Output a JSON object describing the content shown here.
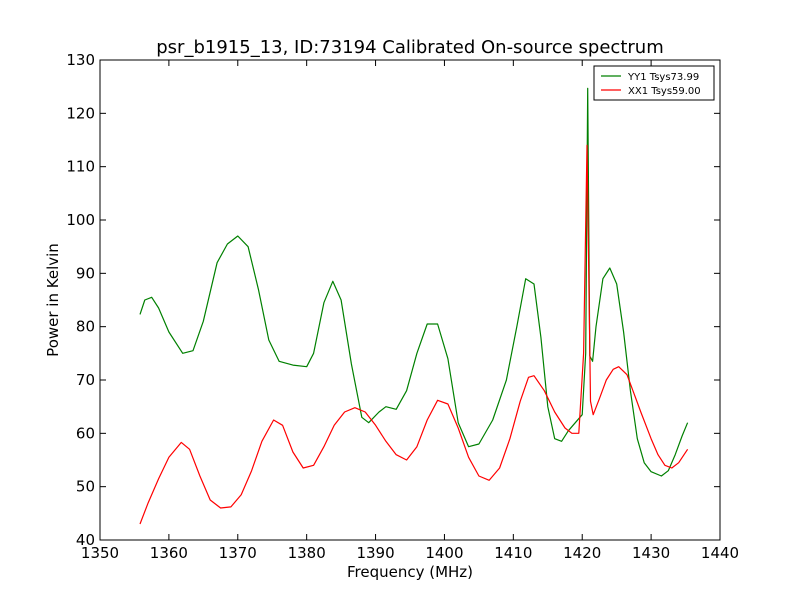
{
  "chart_data": {
    "type": "line",
    "title": "psr_b1915_13, ID:73194 Calibrated On-source spectrum",
    "xlabel": "Frequency (MHz)",
    "ylabel": "Power in Kelvin",
    "xlim": [
      1350,
      1440
    ],
    "ylim": [
      40,
      130
    ],
    "xticks": [
      1350,
      1360,
      1370,
      1380,
      1390,
      1400,
      1410,
      1420,
      1430,
      1440
    ],
    "yticks": [
      40,
      50,
      60,
      70,
      80,
      90,
      100,
      110,
      120,
      130
    ],
    "grid": false,
    "legend_position": "top-right",
    "series": [
      {
        "name": "YY1 Tsys73.99",
        "color": "#008000",
        "x": [
          1355.8,
          1356.5,
          1357.5,
          1358.5,
          1360.0,
          1362.0,
          1363.5,
          1365.0,
          1367.0,
          1368.5,
          1370.0,
          1371.5,
          1373.0,
          1374.5,
          1376.0,
          1378.0,
          1380.0,
          1381.0,
          1382.5,
          1383.8,
          1385.0,
          1386.5,
          1388.0,
          1389.0,
          1390.5,
          1391.5,
          1393.0,
          1394.5,
          1396.0,
          1397.5,
          1399.0,
          1400.5,
          1402.0,
          1403.5,
          1405.0,
          1407.0,
          1409.0,
          1410.5,
          1411.8,
          1413.0,
          1414.0,
          1415.0,
          1416.0,
          1417.0,
          1418.0,
          1419.0,
          1420.0,
          1420.5,
          1420.8,
          1421.1,
          1421.5,
          1422.0,
          1423.0,
          1424.0,
          1425.0,
          1426.0,
          1427.0,
          1428.0,
          1429.0,
          1430.0,
          1431.5,
          1432.5,
          1433.5,
          1434.5,
          1435.3
        ],
        "y": [
          82.3,
          85.0,
          85.5,
          83.5,
          79.0,
          75.0,
          75.5,
          81.0,
          92.0,
          95.5,
          97.0,
          95.0,
          87.0,
          77.5,
          73.5,
          72.8,
          72.5,
          75.0,
          84.5,
          88.5,
          85.0,
          73.0,
          63.0,
          62.0,
          64.0,
          65.0,
          64.5,
          68.0,
          75.0,
          80.5,
          80.5,
          74.0,
          62.0,
          57.5,
          58.0,
          62.5,
          70.0,
          80.0,
          89.0,
          88.0,
          78.0,
          65.0,
          59.0,
          58.5,
          60.5,
          62.0,
          63.5,
          75.0,
          124.7,
          74.5,
          73.5,
          80.0,
          89.0,
          91.0,
          88.0,
          79.0,
          68.0,
          59.0,
          54.5,
          52.8,
          52.0,
          53.0,
          56.0,
          59.5,
          62.0
        ]
      },
      {
        "name": "XX1 Tsys59.00",
        "color": "#ff0000",
        "x": [
          1355.8,
          1357.0,
          1358.5,
          1360.0,
          1361.8,
          1363.0,
          1364.5,
          1366.0,
          1367.5,
          1369.0,
          1370.5,
          1372.0,
          1373.5,
          1375.2,
          1376.5,
          1378.0,
          1379.5,
          1381.0,
          1382.5,
          1384.0,
          1385.5,
          1387.0,
          1388.5,
          1390.0,
          1391.5,
          1393.0,
          1394.5,
          1396.0,
          1397.5,
          1399.0,
          1400.5,
          1402.0,
          1403.5,
          1405.0,
          1406.5,
          1408.0,
          1409.5,
          1411.0,
          1412.2,
          1413.0,
          1414.5,
          1416.0,
          1417.5,
          1418.5,
          1419.5,
          1420.2,
          1420.7,
          1421.2,
          1421.6,
          1422.5,
          1423.5,
          1424.5,
          1425.3,
          1426.5,
          1427.5,
          1428.5,
          1430.0,
          1431.0,
          1432.0,
          1433.0,
          1434.0,
          1435.3
        ],
        "y": [
          43.0,
          47.0,
          51.5,
          55.5,
          58.3,
          57.0,
          52.0,
          47.5,
          46.0,
          46.2,
          48.5,
          53.0,
          58.5,
          62.5,
          61.5,
          56.5,
          53.5,
          54.0,
          57.5,
          61.5,
          64.0,
          64.8,
          64.0,
          61.5,
          58.5,
          56.0,
          55.0,
          57.5,
          62.5,
          66.2,
          65.5,
          61.0,
          55.5,
          52.0,
          51.2,
          53.5,
          59.0,
          66.0,
          70.5,
          70.8,
          68.0,
          64.0,
          61.0,
          60.0,
          60.0,
          75.0,
          114.0,
          66.0,
          63.5,
          66.5,
          70.0,
          72.0,
          72.5,
          71.0,
          67.5,
          64.0,
          59.0,
          56.0,
          54.0,
          53.5,
          54.5,
          57.0
        ]
      }
    ]
  }
}
